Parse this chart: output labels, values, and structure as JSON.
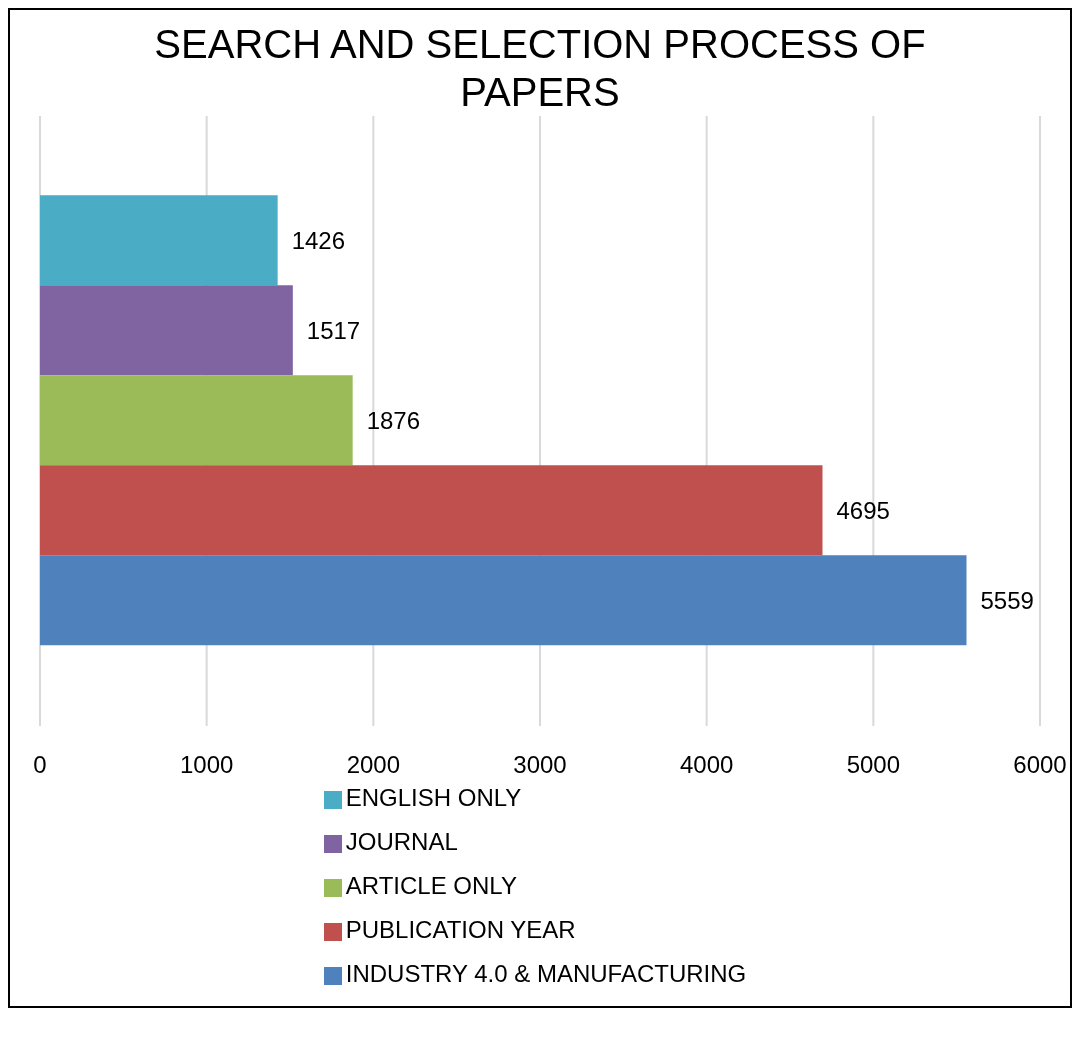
{
  "chart_data": {
    "type": "bar",
    "title": "SEARCH AND SELECTION PROCESS OF PAPERS",
    "orientation": "horizontal",
    "categories": [
      null
    ],
    "series": [
      {
        "name": "ENGLISH ONLY",
        "color": "#4bacc6",
        "values": [
          1426
        ]
      },
      {
        "name": "JOURNAL",
        "color": "#8064a2",
        "values": [
          1517
        ]
      },
      {
        "name": "ARTICLE ONLY",
        "color": "#9bbb59",
        "values": [
          1876
        ]
      },
      {
        "name": "PUBLICATION YEAR",
        "color": "#c0504d",
        "values": [
          4695
        ]
      },
      {
        "name": "INDUSTRY 4.0 & MANUFACTURING",
        "color": "#4f81bd",
        "values": [
          5559
        ]
      }
    ],
    "xlim": [
      0,
      6000
    ],
    "xticks": [
      0,
      1000,
      2000,
      3000,
      4000,
      5000,
      6000
    ],
    "grid": "x",
    "legend": "bottom",
    "data_labels": true
  }
}
